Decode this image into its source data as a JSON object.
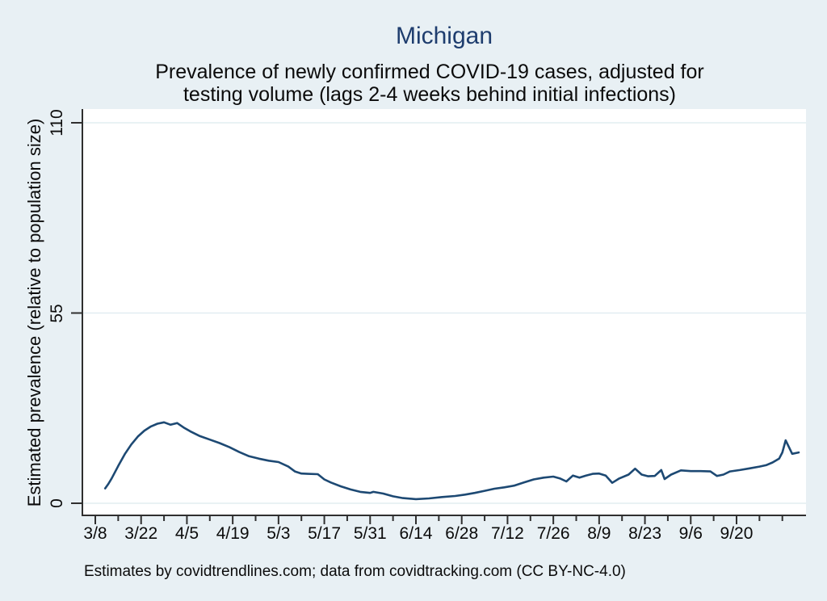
{
  "page": {
    "background_color": "#e8f0f4",
    "plot_background_color": "#ffffff"
  },
  "header": {
    "title": "Michigan",
    "title_color": "#1e3d6e",
    "subtitle_line1": "Prevalence of newly confirmed COVID-19 cases, adjusted for",
    "subtitle_line2": "testing volume (lags 2-4 weeks behind initial infections)"
  },
  "caption": "Estimates by covidtrendlines.com; data from covidtracking.com (CC BY-NC-4.0)",
  "chart_data": {
    "type": "line",
    "title": "Michigan",
    "subtitle": "Prevalence of newly confirmed COVID-19 cases, adjusted for testing volume (lags 2-4 weeks behind initial infections)",
    "xlabel": "",
    "ylabel": "Estimated prevalence (relative to population size)",
    "ylim": [
      0,
      110
    ],
    "yticks": [
      0,
      55,
      110
    ],
    "xticks_major": [
      "3/8",
      "3/22",
      "4/5",
      "4/19",
      "5/3",
      "5/17",
      "5/31",
      "6/14",
      "6/28",
      "7/12",
      "7/26",
      "8/9",
      "8/23",
      "9/6",
      "9/20"
    ],
    "xticks_minor": [
      "3/15",
      "3/29",
      "4/12",
      "4/26",
      "5/10",
      "5/24",
      "6/7",
      "6/21",
      "7/5",
      "7/19",
      "8/2",
      "8/16",
      "8/30",
      "9/13",
      "9/27",
      "10/4"
    ],
    "grid": true,
    "legend_position": "none",
    "line_color": "#1d4973",
    "axis_color": "#2f2f2f",
    "grid_color": "#e2edf1",
    "series": [
      {
        "name": "estimated-prevalence",
        "points": [
          [
            "3/11",
            4.3
          ],
          [
            "3/12",
            5.6
          ],
          [
            "3/13",
            7.2
          ],
          [
            "3/15",
            10.8
          ],
          [
            "3/17",
            14.2
          ],
          [
            "3/19",
            17.0
          ],
          [
            "3/21",
            19.3
          ],
          [
            "3/23",
            21.0
          ],
          [
            "3/25",
            22.2
          ],
          [
            "3/27",
            23.0
          ],
          [
            "3/29",
            23.4
          ],
          [
            "3/31",
            22.7
          ],
          [
            "4/2",
            23.2
          ],
          [
            "4/4",
            21.9
          ],
          [
            "4/6",
            20.8
          ],
          [
            "4/9",
            19.4
          ],
          [
            "4/12",
            18.4
          ],
          [
            "4/15",
            17.4
          ],
          [
            "4/18",
            16.2
          ],
          [
            "4/21",
            14.8
          ],
          [
            "4/24",
            13.6
          ],
          [
            "4/27",
            12.9
          ],
          [
            "4/30",
            12.3
          ],
          [
            "5/3",
            11.9
          ],
          [
            "5/6",
            10.6
          ],
          [
            "5/8",
            9.2
          ],
          [
            "5/10",
            8.6
          ],
          [
            "5/12",
            8.5
          ],
          [
            "5/15",
            8.4
          ],
          [
            "5/17",
            6.9
          ],
          [
            "5/19",
            6.0
          ],
          [
            "5/22",
            4.9
          ],
          [
            "5/25",
            4.0
          ],
          [
            "5/28",
            3.3
          ],
          [
            "5/31",
            3.0
          ],
          [
            "6/1",
            3.3
          ],
          [
            "6/4",
            2.8
          ],
          [
            "6/7",
            2.0
          ],
          [
            "6/10",
            1.5
          ],
          [
            "6/14",
            1.2
          ],
          [
            "6/18",
            1.4
          ],
          [
            "6/22",
            1.8
          ],
          [
            "6/26",
            2.1
          ],
          [
            "6/29",
            2.5
          ],
          [
            "7/2",
            3.0
          ],
          [
            "7/5",
            3.6
          ],
          [
            "7/8",
            4.2
          ],
          [
            "7/11",
            4.6
          ],
          [
            "7/14",
            5.1
          ],
          [
            "7/17",
            6.0
          ],
          [
            "7/20",
            6.9
          ],
          [
            "7/23",
            7.4
          ],
          [
            "7/26",
            7.7
          ],
          [
            "7/28",
            7.2
          ],
          [
            "7/30",
            6.3
          ],
          [
            "8/1",
            8.0
          ],
          [
            "8/3",
            7.4
          ],
          [
            "8/5",
            8.0
          ],
          [
            "8/7",
            8.5
          ],
          [
            "8/9",
            8.6
          ],
          [
            "8/11",
            8.0
          ],
          [
            "8/13",
            5.9
          ],
          [
            "8/15",
            7.1
          ],
          [
            "8/18",
            8.3
          ],
          [
            "8/20",
            10.0
          ],
          [
            "8/22",
            8.3
          ],
          [
            "8/24",
            7.8
          ],
          [
            "8/26",
            7.9
          ],
          [
            "8/28",
            9.6
          ],
          [
            "8/29",
            7.0
          ],
          [
            "8/31",
            8.3
          ],
          [
            "9/3",
            9.5
          ],
          [
            "9/6",
            9.3
          ],
          [
            "9/9",
            9.3
          ],
          [
            "9/12",
            9.2
          ],
          [
            "9/14",
            7.9
          ],
          [
            "9/16",
            8.3
          ],
          [
            "9/18",
            9.2
          ],
          [
            "9/21",
            9.6
          ],
          [
            "9/24",
            10.1
          ],
          [
            "9/27",
            10.6
          ],
          [
            "9/29",
            11.0
          ],
          [
            "10/1",
            11.8
          ],
          [
            "10/3",
            12.9
          ],
          [
            "10/4",
            14.7
          ],
          [
            "10/5",
            18.2
          ],
          [
            "10/7",
            14.3
          ],
          [
            "10/9",
            14.7
          ]
        ]
      }
    ]
  }
}
